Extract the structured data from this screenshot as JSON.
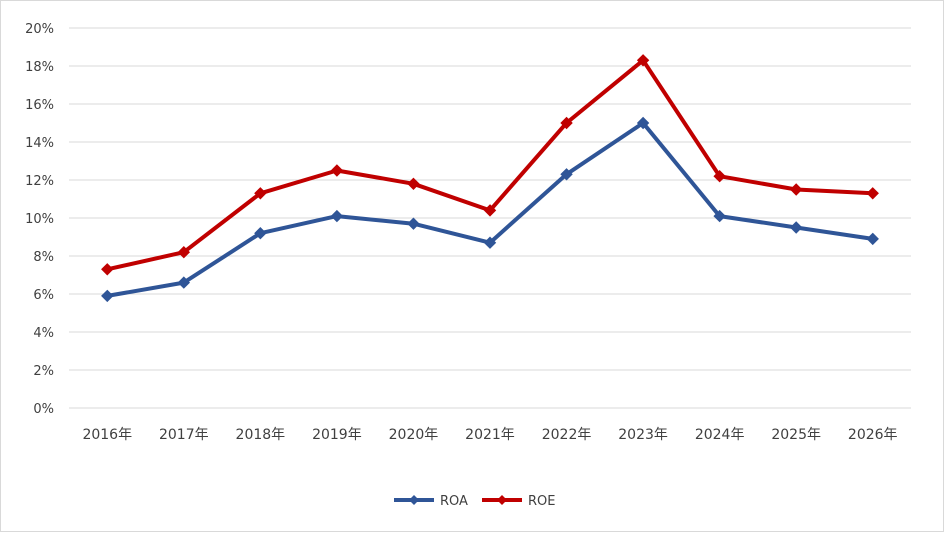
{
  "chart_data": {
    "type": "line",
    "title": "",
    "xlabel": "",
    "ylabel": "",
    "categories": [
      "2016年",
      "2017年",
      "2018年",
      "2019年",
      "2020年",
      "2021年",
      "2022年",
      "2023年",
      "2024年",
      "2025年",
      "2026年"
    ],
    "ylim": [
      0,
      20
    ],
    "yticks": [
      "0%",
      "2%",
      "4%",
      "6%",
      "8%",
      "10%",
      "12%",
      "14%",
      "16%",
      "18%",
      "20%"
    ],
    "grid": true,
    "legend_position": "bottom",
    "series": [
      {
        "name": "ROA",
        "color": "#2f5597",
        "marker": "diamond",
        "values": [
          5.9,
          6.6,
          9.2,
          10.1,
          9.7,
          8.7,
          12.3,
          15.0,
          10.1,
          9.5,
          8.9
        ]
      },
      {
        "name": "ROE",
        "color": "#c00000",
        "marker": "diamond",
        "values": [
          7.3,
          8.2,
          11.3,
          12.5,
          11.8,
          10.4,
          15.0,
          18.3,
          12.2,
          11.5,
          11.3
        ]
      }
    ]
  }
}
